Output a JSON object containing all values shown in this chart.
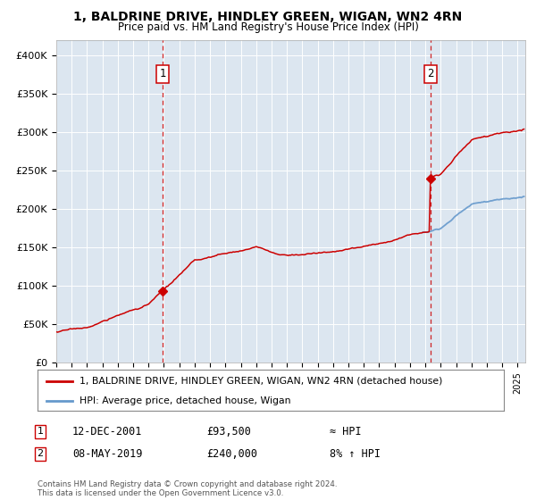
{
  "title1": "1, BALDRINE DRIVE, HINDLEY GREEN, WIGAN, WN2 4RN",
  "title2": "Price paid vs. HM Land Registry's House Price Index (HPI)",
  "background_color": "#dce6f0",
  "ylim": [
    0,
    420000
  ],
  "yticks": [
    0,
    50000,
    100000,
    150000,
    200000,
    250000,
    300000,
    350000,
    400000
  ],
  "ytick_labels": [
    "£0",
    "£50K",
    "£100K",
    "£150K",
    "£200K",
    "£250K",
    "£300K",
    "£350K",
    "£400K"
  ],
  "sale1_t": 2001.9167,
  "sale1_price": 93500,
  "sale2_t": 2019.3333,
  "sale2_price": 240000,
  "legend_label1": "1, BALDRINE DRIVE, HINDLEY GREEN, WIGAN, WN2 4RN (detached house)",
  "legend_label2": "HPI: Average price, detached house, Wigan",
  "annotation1_label": "12-DEC-2001",
  "annotation1_price": "£93,500",
  "annotation1_rel": "≈ HPI",
  "annotation2_label": "08-MAY-2019",
  "annotation2_price": "£240,000",
  "annotation2_rel": "8% ↑ HPI",
  "footer": "Contains HM Land Registry data © Crown copyright and database right 2024.\nThis data is licensed under the Open Government Licence v3.0.",
  "line_color_price": "#cc0000",
  "line_color_hpi": "#6699cc",
  "vline_color": "#cc0000",
  "marker_color": "#cc0000",
  "xlim_start": 1995.0,
  "xlim_end": 2025.5
}
